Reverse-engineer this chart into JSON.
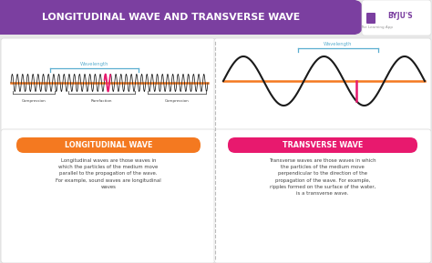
{
  "title": "LONGITUDINAL WAVE AND TRANSVERSE WAVE",
  "title_bg": "#7b3fa0",
  "title_color": "#ffffff",
  "bg_color": "#e8e8e8",
  "panel_bg": "#ffffff",
  "long_label": "LONGITUDINAL WAVE",
  "long_label_bg_left": "#f47920",
  "long_label_bg_right": "#e85d20",
  "trans_label": "TRANSVERSE WAVE",
  "trans_label_bg_left": "#e8196e",
  "trans_label_bg_right": "#c0106a",
  "long_text": "Longitudinal waves are those waves in\nwhich the particles of the medium move\nparallel to the propagation of the wave.\nFor example, sound waves are longitudinal\nwaves",
  "trans_text": "Transverse waves are those waves in which\nthe particles of the medium move\nperpendicular to the direction of the\npropagation of the wave. For example,\nripples formed on the surface of the water,\nis a transverse wave.",
  "wavelength_color": "#5aaed0",
  "axis_color": "#f47920",
  "wave_color": "#1a1a1a",
  "highlight_color": "#e8196e",
  "text_color": "#444444",
  "byju_color": "#7b3fa0",
  "divider_color": "#bbbbbb",
  "bracket_color": "#555555",
  "panel_edge": "#dddddd"
}
